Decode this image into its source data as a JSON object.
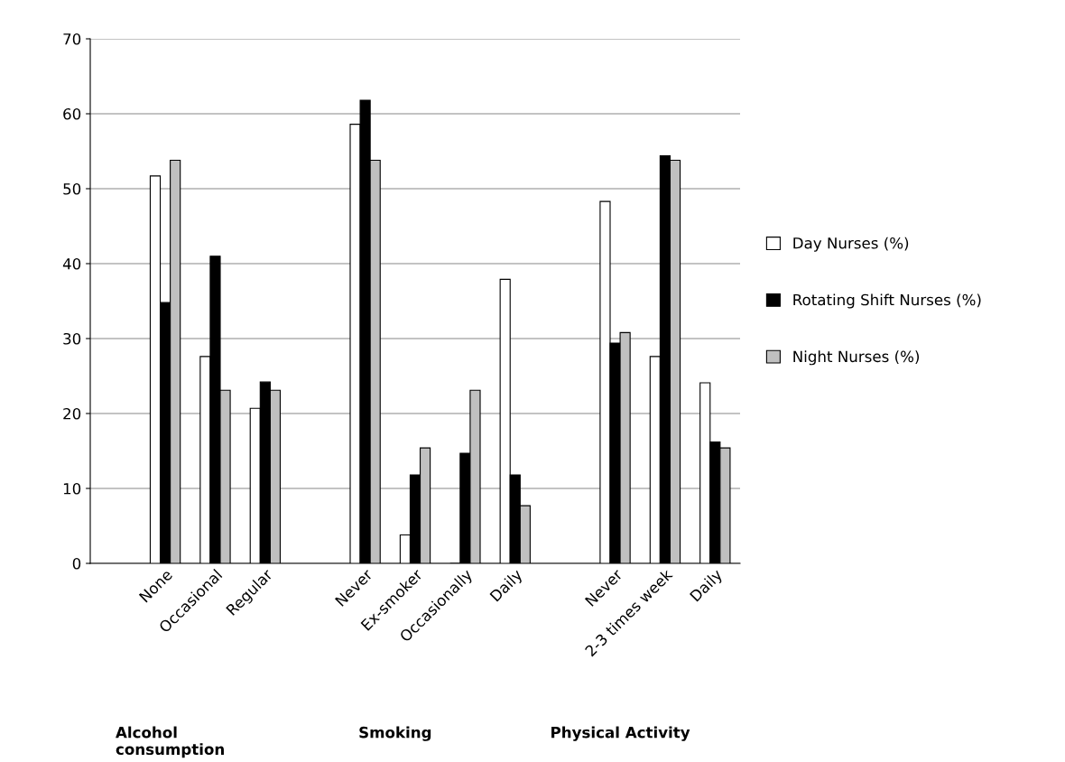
{
  "chart_data": {
    "type": "bar",
    "categories": [
      null,
      "None",
      "Occasional",
      "Regular",
      null,
      "Never",
      "Ex-smoker",
      "Occasionally",
      "Daily",
      null,
      "Never",
      "2-3 times week",
      "Daily"
    ],
    "series": [
      {
        "name": "Day Nurses (%)",
        "color": "#ffffff",
        "values": [
          null,
          51.7,
          27.6,
          20.7,
          null,
          58.6,
          3.8,
          0,
          37.9,
          null,
          48.3,
          27.6,
          24.1
        ]
      },
      {
        "name": "Rotating Shift Nurses (%)",
        "color": "#000000",
        "values": [
          null,
          34.8,
          41.0,
          24.2,
          null,
          61.8,
          11.8,
          14.7,
          11.8,
          null,
          29.4,
          54.4,
          16.2
        ]
      },
      {
        "name": "Night Nurses (%)",
        "color": "#c0c0c0",
        "values": [
          null,
          53.8,
          23.1,
          23.1,
          null,
          53.8,
          15.4,
          23.1,
          7.7,
          null,
          30.8,
          53.8,
          15.4
        ]
      }
    ],
    "annotations": [
      "Alcohol\nconsumption",
      "Smoking",
      "Physical Activity"
    ],
    "ylim": [
      0,
      70
    ],
    "yticks": [
      0,
      10,
      20,
      30,
      40,
      50,
      60,
      70
    ],
    "grid": "y",
    "legend": "right"
  }
}
